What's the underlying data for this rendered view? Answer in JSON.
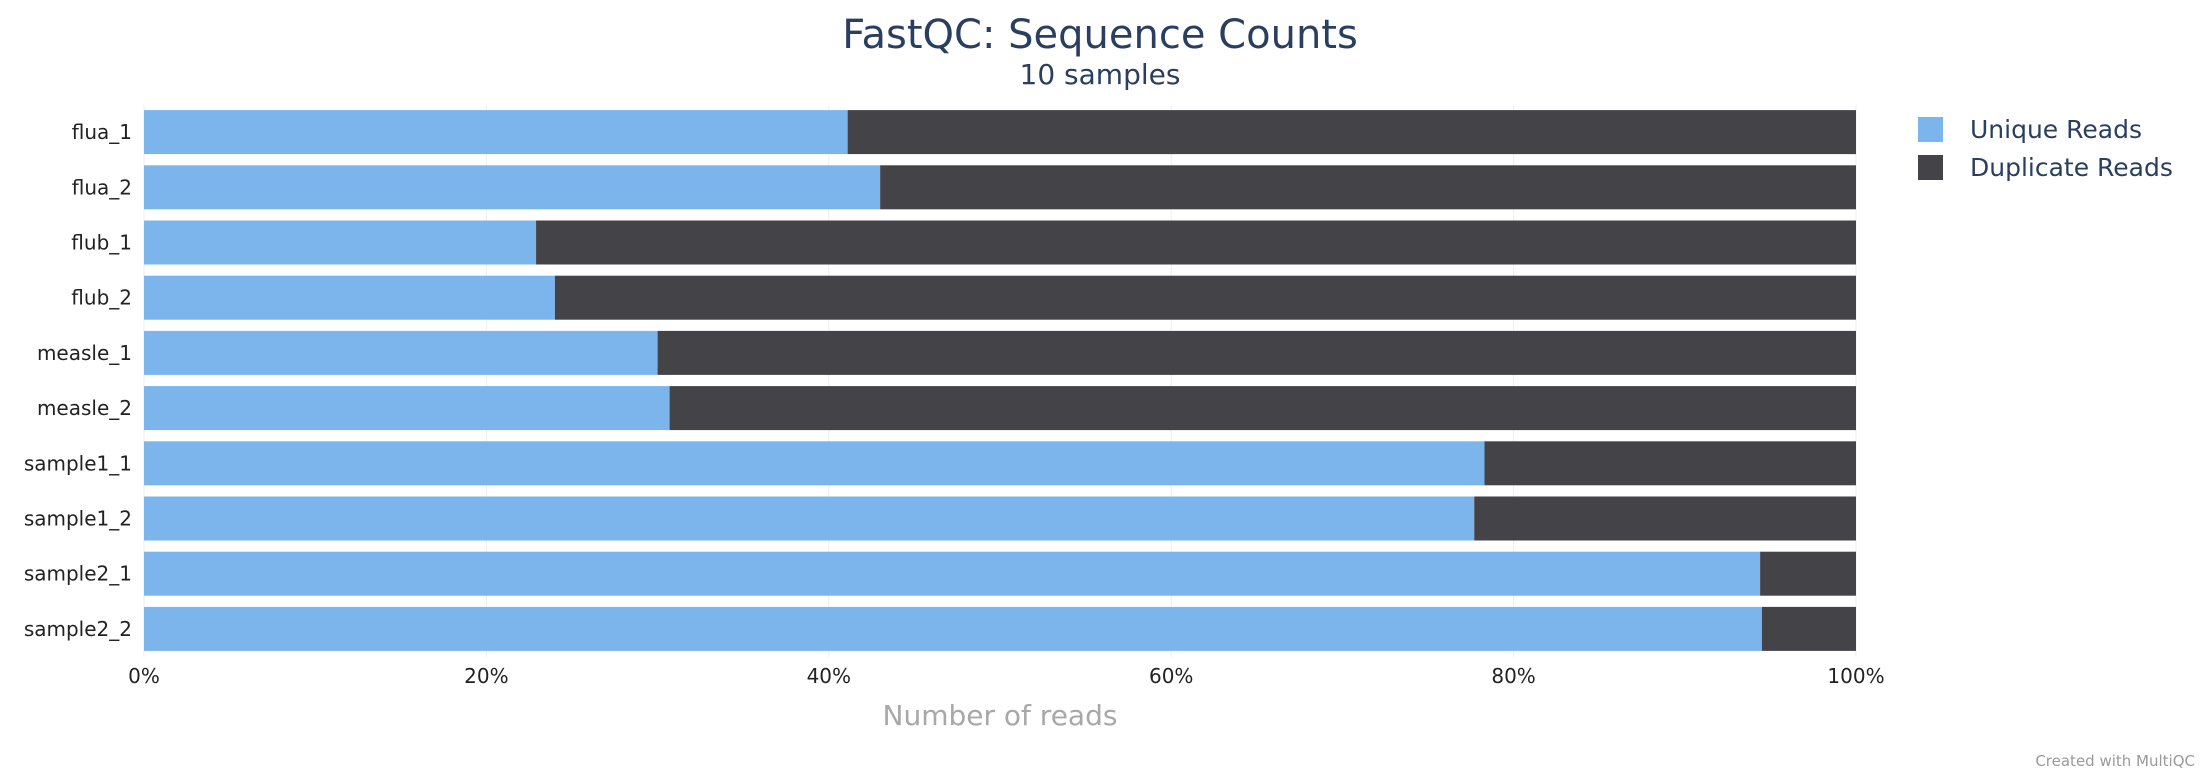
{
  "chart_data": {
    "type": "bar",
    "orientation": "horizontal",
    "stacked": true,
    "title": "FastQC: Sequence Counts",
    "subtitle": "10 samples",
    "xlabel": "Number of reads",
    "ylabel": "",
    "xlim": [
      0,
      100
    ],
    "x_ticks": [
      "0%",
      "20%",
      "40%",
      "60%",
      "80%",
      "100%"
    ],
    "categories": [
      "flua_1",
      "flua_2",
      "flub_1",
      "flub_2",
      "measle_1",
      "measle_2",
      "sample1_1",
      "sample1_2",
      "sample2_1",
      "sample2_2"
    ],
    "series": [
      {
        "name": "Unique Reads",
        "color": "#7cb5ec",
        "values": [
          41.1,
          43.0,
          22.9,
          24.0,
          30.0,
          30.7,
          78.3,
          77.7,
          94.4,
          94.5
        ]
      },
      {
        "name": "Duplicate Reads",
        "color": "#434348",
        "values": [
          58.9,
          57.0,
          77.1,
          76.0,
          70.0,
          69.3,
          21.7,
          22.3,
          5.6,
          5.5
        ]
      }
    ],
    "legend_position": "top-right",
    "grid": true
  },
  "credit": "Created with MultiQC"
}
